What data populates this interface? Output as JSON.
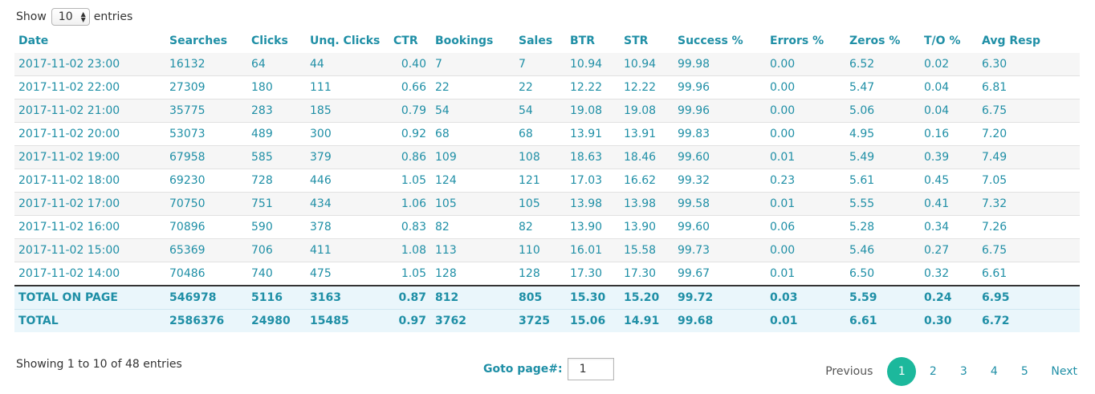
{
  "length_menu": {
    "prefix": "Show",
    "value": "10",
    "suffix": "entries"
  },
  "columns": [
    "Date",
    "Searches",
    "Clicks",
    "Unq. Clicks",
    "CTR",
    "Bookings",
    "Sales",
    "BTR",
    "STR",
    "Success %",
    "Errors %",
    "Zeros %",
    "T/O %",
    "Avg Resp"
  ],
  "rows": [
    [
      "2017-11-02 23:00",
      "16132",
      "64",
      "44",
      "0.40",
      "7",
      "7",
      "10.94",
      "10.94",
      "99.98",
      "0.00",
      "6.52",
      "0.02",
      "6.30"
    ],
    [
      "2017-11-02 22:00",
      "27309",
      "180",
      "111",
      "0.66",
      "22",
      "22",
      "12.22",
      "12.22",
      "99.96",
      "0.00",
      "5.47",
      "0.04",
      "6.81"
    ],
    [
      "2017-11-02 21:00",
      "35775",
      "283",
      "185",
      "0.79",
      "54",
      "54",
      "19.08",
      "19.08",
      "99.96",
      "0.00",
      "5.06",
      "0.04",
      "6.75"
    ],
    [
      "2017-11-02 20:00",
      "53073",
      "489",
      "300",
      "0.92",
      "68",
      "68",
      "13.91",
      "13.91",
      "99.83",
      "0.00",
      "4.95",
      "0.16",
      "7.20"
    ],
    [
      "2017-11-02 19:00",
      "67958",
      "585",
      "379",
      "0.86",
      "109",
      "108",
      "18.63",
      "18.46",
      "99.60",
      "0.01",
      "5.49",
      "0.39",
      "7.49"
    ],
    [
      "2017-11-02 18:00",
      "69230",
      "728",
      "446",
      "1.05",
      "124",
      "121",
      "17.03",
      "16.62",
      "99.32",
      "0.23",
      "5.61",
      "0.45",
      "7.05"
    ],
    [
      "2017-11-02 17:00",
      "70750",
      "751",
      "434",
      "1.06",
      "105",
      "105",
      "13.98",
      "13.98",
      "99.58",
      "0.01",
      "5.55",
      "0.41",
      "7.32"
    ],
    [
      "2017-11-02 16:00",
      "70896",
      "590",
      "378",
      "0.83",
      "82",
      "82",
      "13.90",
      "13.90",
      "99.60",
      "0.06",
      "5.28",
      "0.34",
      "7.26"
    ],
    [
      "2017-11-02 15:00",
      "65369",
      "706",
      "411",
      "1.08",
      "113",
      "110",
      "16.01",
      "15.58",
      "99.73",
      "0.00",
      "5.46",
      "0.27",
      "6.75"
    ],
    [
      "2017-11-02 14:00",
      "70486",
      "740",
      "475",
      "1.05",
      "128",
      "128",
      "17.30",
      "17.30",
      "99.67",
      "0.01",
      "6.50",
      "0.32",
      "6.61"
    ]
  ],
  "totals": [
    [
      "TOTAL ON PAGE",
      "546978",
      "5116",
      "3163",
      "0.87",
      "812",
      "805",
      "15.30",
      "15.20",
      "99.72",
      "0.03",
      "5.59",
      "0.24",
      "6.95"
    ],
    [
      "TOTAL",
      "2586376",
      "24980",
      "15485",
      "0.97",
      "3762",
      "3725",
      "15.06",
      "14.91",
      "99.68",
      "0.01",
      "6.61",
      "0.30",
      "6.72"
    ]
  ],
  "info": "Showing 1 to 10 of 48 entries",
  "goto": {
    "label": "Goto page#:",
    "value": "1"
  },
  "pagination": {
    "previous": "Previous",
    "pages": [
      "1",
      "2",
      "3",
      "4",
      "5"
    ],
    "current": "1",
    "next": "Next"
  },
  "colors": {
    "accent": "#1f8fa6",
    "current_page": "#1cb89c",
    "total_row_bg": "#eaf6fb"
  }
}
